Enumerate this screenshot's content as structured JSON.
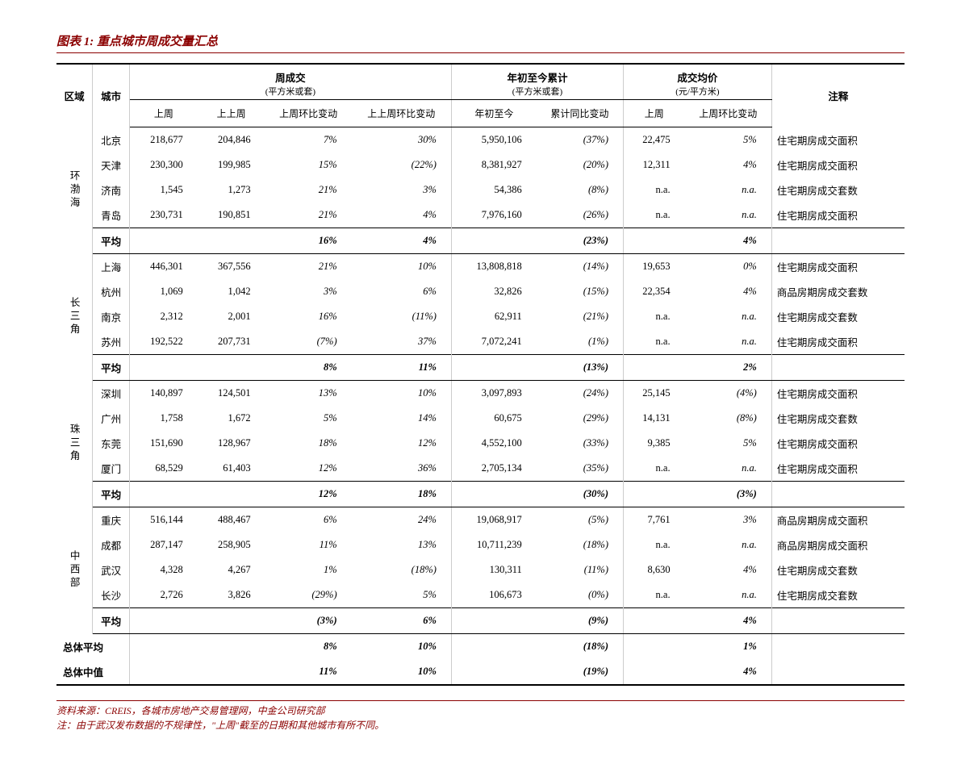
{
  "title": "图表 1: 重点城市周成交量汇总",
  "headers": {
    "region": "区域",
    "city": "城市",
    "weekly_group": "周成交",
    "weekly_unit": "(平方米或套)",
    "ytd_group": "年初至今累计",
    "ytd_unit": "(平方米或套)",
    "price_group": "成交均价",
    "price_unit": "(元/平方米)",
    "notes": "注释",
    "last_week": "上周",
    "prev_week": "上上周",
    "wow": "上周环比变动",
    "prev_wow": "上上周环比变动",
    "ytd": "年初至今",
    "ytd_yoy": "累计同比变动",
    "price_lw": "上周",
    "price_wow": "上周环比变动"
  },
  "regions": [
    {
      "name": "环渤海",
      "rows": [
        {
          "city": "北京",
          "lw": "218,677",
          "pw": "204,846",
          "wow": "7%",
          "pwow": "30%",
          "ytd": "5,950,106",
          "yoy": "(37%)",
          "price": "22,475",
          "pwowc": "5%",
          "note": "住宅期房成交面积"
        },
        {
          "city": "天津",
          "lw": "230,300",
          "pw": "199,985",
          "wow": "15%",
          "pwow": "(22%)",
          "ytd": "8,381,927",
          "yoy": "(20%)",
          "price": "12,311",
          "pwowc": "4%",
          "note": "住宅期房成交面积"
        },
        {
          "city": "济南",
          "lw": "1,545",
          "pw": "1,273",
          "wow": "21%",
          "pwow": "3%",
          "ytd": "54,386",
          "yoy": "(8%)",
          "price": "n.a.",
          "pwowc": "n.a.",
          "note": "住宅期房成交套数"
        },
        {
          "city": "青岛",
          "lw": "230,731",
          "pw": "190,851",
          "wow": "21%",
          "pwow": "4%",
          "ytd": "7,976,160",
          "yoy": "(26%)",
          "price": "n.a.",
          "pwowc": "n.a.",
          "note": "住宅期房成交面积"
        }
      ],
      "avg": {
        "label": "平均",
        "wow": "16%",
        "pwow": "4%",
        "yoy": "(23%)",
        "pwowc": "4%"
      }
    },
    {
      "name": "长三角",
      "rows": [
        {
          "city": "上海",
          "lw": "446,301",
          "pw": "367,556",
          "wow": "21%",
          "pwow": "10%",
          "ytd": "13,808,818",
          "yoy": "(14%)",
          "price": "19,653",
          "pwowc": "0%",
          "note": "住宅期房成交面积"
        },
        {
          "city": "杭州",
          "lw": "1,069",
          "pw": "1,042",
          "wow": "3%",
          "pwow": "6%",
          "ytd": "32,826",
          "yoy": "(15%)",
          "price": "22,354",
          "pwowc": "4%",
          "note": "商品房期房成交套数"
        },
        {
          "city": "南京",
          "lw": "2,312",
          "pw": "2,001",
          "wow": "16%",
          "pwow": "(11%)",
          "ytd": "62,911",
          "yoy": "(21%)",
          "price": "n.a.",
          "pwowc": "n.a.",
          "note": "住宅期房成交套数"
        },
        {
          "city": "苏州",
          "lw": "192,522",
          "pw": "207,731",
          "wow": "(7%)",
          "pwow": "37%",
          "ytd": "7,072,241",
          "yoy": "(1%)",
          "price": "n.a.",
          "pwowc": "n.a.",
          "note": "住宅期房成交面积"
        }
      ],
      "avg": {
        "label": "平均",
        "wow": "8%",
        "pwow": "11%",
        "yoy": "(13%)",
        "pwowc": "2%"
      }
    },
    {
      "name": "珠三角",
      "rows": [
        {
          "city": "深圳",
          "lw": "140,897",
          "pw": "124,501",
          "wow": "13%",
          "pwow": "10%",
          "ytd": "3,097,893",
          "yoy": "(24%)",
          "price": "25,145",
          "pwowc": "(4%)",
          "note": "住宅期房成交面积"
        },
        {
          "city": "广州",
          "lw": "1,758",
          "pw": "1,672",
          "wow": "5%",
          "pwow": "14%",
          "ytd": "60,675",
          "yoy": "(29%)",
          "price": "14,131",
          "pwowc": "(8%)",
          "note": "住宅期房成交套数"
        },
        {
          "city": "东莞",
          "lw": "151,690",
          "pw": "128,967",
          "wow": "18%",
          "pwow": "12%",
          "ytd": "4,552,100",
          "yoy": "(33%)",
          "price": "9,385",
          "pwowc": "5%",
          "note": "住宅期房成交面积"
        },
        {
          "city": "厦门",
          "lw": "68,529",
          "pw": "61,403",
          "wow": "12%",
          "pwow": "36%",
          "ytd": "2,705,134",
          "yoy": "(35%)",
          "price": "n.a.",
          "pwowc": "n.a.",
          "note": "住宅期房成交面积"
        }
      ],
      "avg": {
        "label": "平均",
        "wow": "12%",
        "pwow": "18%",
        "yoy": "(30%)",
        "pwowc": "(3%)"
      }
    },
    {
      "name": "中西部",
      "rows": [
        {
          "city": "重庆",
          "lw": "516,144",
          "pw": "488,467",
          "wow": "6%",
          "pwow": "24%",
          "ytd": "19,068,917",
          "yoy": "(5%)",
          "price": "7,761",
          "pwowc": "3%",
          "note": "商品房期房成交面积"
        },
        {
          "city": "成都",
          "lw": "287,147",
          "pw": "258,905",
          "wow": "11%",
          "pwow": "13%",
          "ytd": "10,711,239",
          "yoy": "(18%)",
          "price": "n.a.",
          "pwowc": "n.a.",
          "note": "商品房期房成交面积"
        },
        {
          "city": "武汉",
          "lw": "4,328",
          "pw": "4,267",
          "wow": "1%",
          "pwow": "(18%)",
          "ytd": "130,311",
          "yoy": "(11%)",
          "price": "8,630",
          "pwowc": "4%",
          "note": "住宅期房成交套数"
        },
        {
          "city": "长沙",
          "lw": "2,726",
          "pw": "3,826",
          "wow": "(29%)",
          "pwow": "5%",
          "ytd": "106,673",
          "yoy": "(0%)",
          "price": "n.a.",
          "pwowc": "n.a.",
          "note": "住宅期房成交套数"
        }
      ],
      "avg": {
        "label": "平均",
        "wow": "(3%)",
        "pwow": "6%",
        "yoy": "(9%)",
        "pwowc": "4%"
      }
    }
  ],
  "totals": [
    {
      "label": "总体平均",
      "wow": "8%",
      "pwow": "10%",
      "yoy": "(18%)",
      "pwowc": "1%"
    },
    {
      "label": "总体中值",
      "wow": "11%",
      "pwow": "10%",
      "yoy": "(19%)",
      "pwowc": "4%"
    }
  ],
  "source": "资料来源：CREIS，各城市房地产交易管理网，中金公司研究部",
  "footnote": "注：由于武汉发布数据的不规律性，\"上周\"截至的日期和其他城市有所不同。",
  "colors": {
    "accent": "#8b0000",
    "border": "#000000",
    "text": "#000000",
    "bg": "#ffffff"
  }
}
